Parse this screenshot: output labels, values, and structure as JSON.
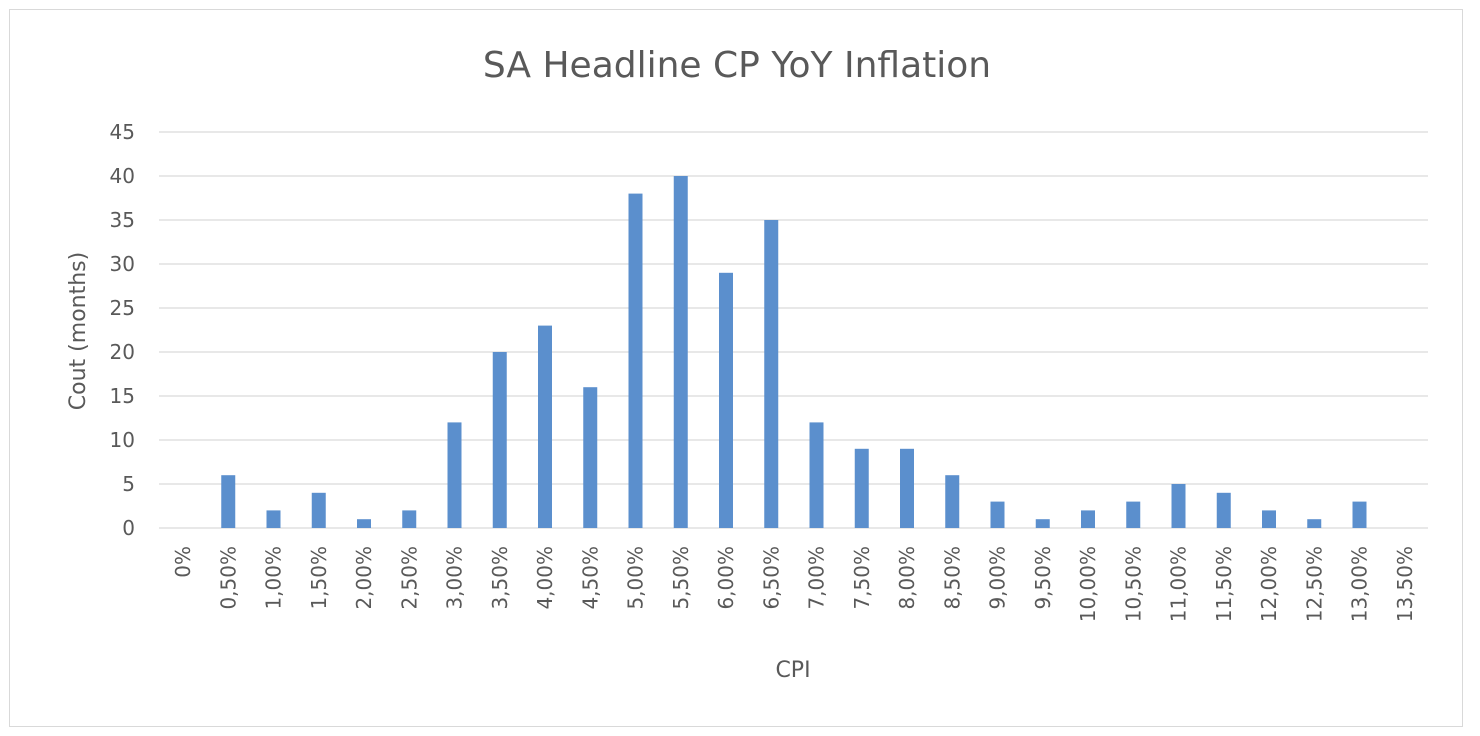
{
  "chart_data": {
    "type": "bar",
    "title": "SA Headline CP YoY Inflation",
    "xlabel": "CPI",
    "ylabel": "Cout (months)",
    "categories": [
      "0%",
      "0,50%",
      "1,00%",
      "1,50%",
      "2,00%",
      "2,50%",
      "3,00%",
      "3,50%",
      "4,00%",
      "4,50%",
      "5,00%",
      "5,50%",
      "6,00%",
      "6,50%",
      "7,00%",
      "7,50%",
      "8,00%",
      "8,50%",
      "9,00%",
      "9,50%",
      "10,00%",
      "10,50%",
      "11,00%",
      "11,50%",
      "12,00%",
      "12,50%",
      "13,00%",
      "13,50%"
    ],
    "values": [
      0,
      6,
      2,
      4,
      1,
      2,
      12,
      20,
      23,
      16,
      38,
      40,
      29,
      35,
      12,
      9,
      9,
      6,
      3,
      1,
      2,
      3,
      5,
      4,
      2,
      1,
      3,
      0
    ],
    "ylim": [
      0,
      45
    ],
    "yticks": [
      "0",
      "5",
      "10",
      "15",
      "20",
      "25",
      "30",
      "35",
      "40",
      "45"
    ],
    "grid": true,
    "legend": "none",
    "colors": {
      "bar": "#5b8fcd",
      "grid": "#d9d9d9",
      "text": "#595959",
      "border": "#d9d9d9"
    }
  }
}
